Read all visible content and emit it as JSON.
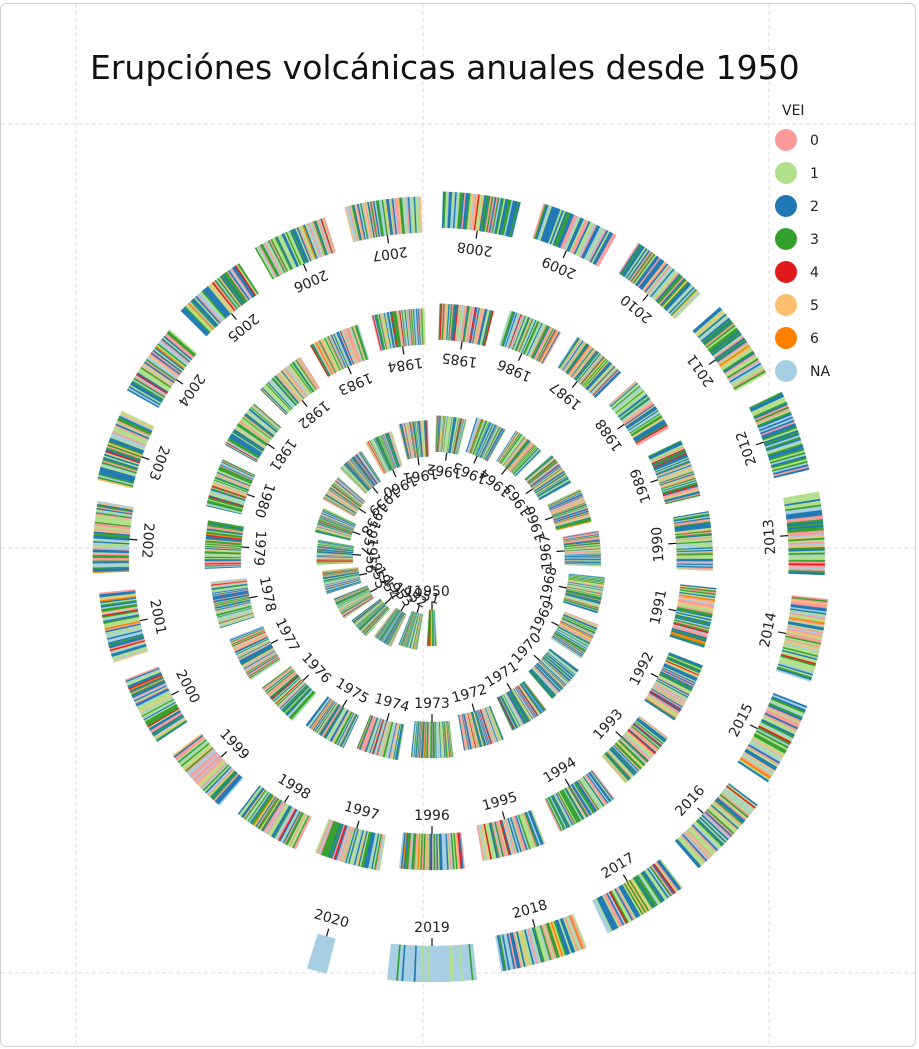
{
  "chart_data": {
    "type": "radial-spiral-barcode",
    "title": "Erupciónes volcánicas anuales desde 1950",
    "legend": {
      "title": "VEI",
      "placement": "top-right",
      "entries": [
        {
          "label": "0",
          "color": "#fb9a99"
        },
        {
          "label": "1",
          "color": "#b2df8a"
        },
        {
          "label": "2",
          "color": "#1f78b4"
        },
        {
          "label": "3",
          "color": "#33a02c"
        },
        {
          "label": "4",
          "color": "#e31a1c"
        },
        {
          "label": "5",
          "color": "#fdbf6f"
        },
        {
          "label": "6",
          "color": "#ff7f00"
        },
        {
          "label": "NA",
          "color": "#a6cee3"
        }
      ]
    },
    "years": [
      "1950",
      "1951",
      "1952",
      "1953",
      "1954",
      "1955",
      "1956",
      "1957",
      "1958",
      "1959",
      "1960",
      "1961",
      "1962",
      "1963",
      "1964",
      "1965",
      "1966",
      "1967",
      "1968",
      "1969",
      "1970",
      "1971",
      "1972",
      "1973",
      "1974",
      "1975",
      "1976",
      "1977",
      "1978",
      "1979",
      "1980",
      "1981",
      "1982",
      "1983",
      "1984",
      "1985",
      "1986",
      "1987",
      "1988",
      "1989",
      "1990",
      "1991",
      "1992",
      "1993",
      "1994",
      "1995",
      "1996",
      "1997",
      "1998",
      "1999",
      "2000",
      "2001",
      "2002",
      "2003",
      "2004",
      "2005",
      "2006",
      "2007",
      "2008",
      "2009",
      "2010",
      "2011",
      "2012",
      "2013",
      "2014",
      "2015",
      "2016",
      "2017",
      "2018",
      "2019",
      "2020"
    ],
    "grid": true
  }
}
